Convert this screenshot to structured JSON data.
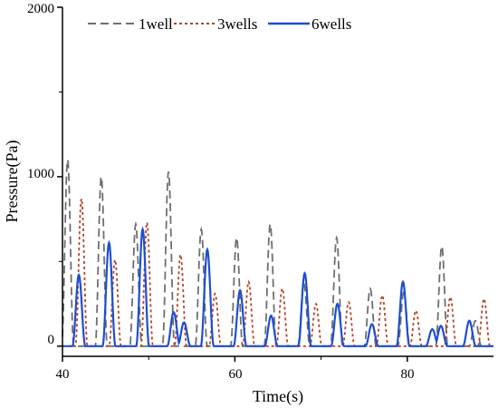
{
  "chart_data": {
    "type": "line",
    "xlabel": "Time(s)",
    "ylabel": "Pressure(Pa)",
    "xlim": [
      40,
      90
    ],
    "ylim": [
      -60,
      2000
    ],
    "xticks": [
      "40",
      "60",
      "80"
    ],
    "yticks": [
      "0",
      "1000",
      "2000"
    ],
    "grid": false,
    "legend_position": "top",
    "series": [
      {
        "name": "1well",
        "color": "#6f6f6f",
        "style": "dashed",
        "peaks": [
          [
            40.6,
            1100
          ],
          [
            44.5,
            1000
          ],
          [
            48.5,
            720
          ],
          [
            52.3,
            1030
          ],
          [
            56.1,
            690
          ],
          [
            60.2,
            640
          ],
          [
            64.1,
            720
          ],
          [
            68.0,
            370
          ],
          [
            71.8,
            640
          ],
          [
            75.7,
            340
          ],
          [
            79.6,
            320
          ],
          [
            84.0,
            590
          ],
          [
            87.9,
            150
          ]
        ],
        "half_width": 0.7
      },
      {
        "name": "3wells",
        "color": "#b5452a",
        "style": "dotted",
        "peaks": [
          [
            42.2,
            870
          ],
          [
            46.1,
            510
          ],
          [
            49.8,
            730
          ],
          [
            53.7,
            540
          ],
          [
            57.7,
            310
          ],
          [
            61.6,
            380
          ],
          [
            65.5,
            340
          ],
          [
            69.4,
            250
          ],
          [
            73.2,
            260
          ],
          [
            77.1,
            300
          ],
          [
            81.0,
            210
          ],
          [
            85.0,
            290
          ],
          [
            88.9,
            280
          ]
        ],
        "half_width": 0.7
      },
      {
        "name": "6wells",
        "color": "#1f4fd0",
        "style": "solid",
        "peaks": [
          [
            41.9,
            420
          ],
          [
            45.4,
            610
          ],
          [
            49.3,
            690
          ],
          [
            52.9,
            200
          ],
          [
            54.1,
            140
          ],
          [
            56.8,
            570
          ],
          [
            60.6,
            330
          ],
          [
            64.2,
            180
          ],
          [
            68.1,
            430
          ],
          [
            71.9,
            250
          ],
          [
            75.9,
            130
          ],
          [
            79.5,
            380
          ],
          [
            82.9,
            100
          ],
          [
            83.9,
            120
          ],
          [
            87.2,
            150
          ]
        ],
        "half_width": 0.75
      }
    ]
  }
}
